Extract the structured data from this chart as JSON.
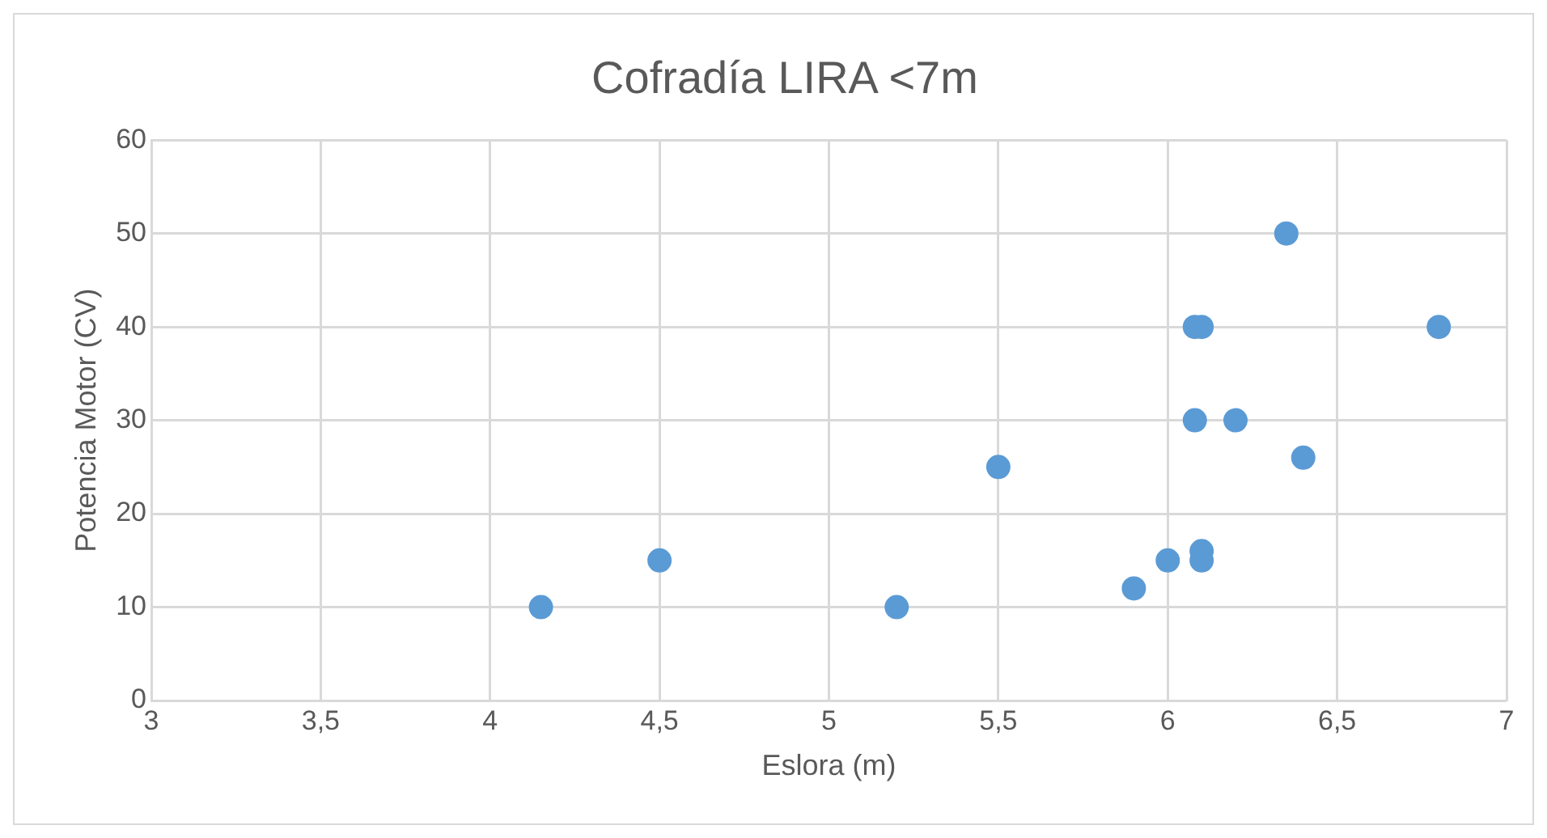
{
  "chart_data": {
    "type": "scatter",
    "title": "Cofradía LIRA <7m",
    "xlabel": "Eslora (m)",
    "ylabel": "Potencia Motor (CV)",
    "x": [
      4.15,
      4.5,
      5.2,
      5.5,
      5.9,
      6.0,
      6.1,
      6.1,
      6.08,
      6.08,
      6.1,
      6.2,
      6.35,
      6.4,
      6.8
    ],
    "series": [
      {
        "color": "#5b9bd5",
        "values": [
          10,
          15,
          10,
          25,
          12,
          15,
          16,
          15,
          30,
          40,
          40,
          30,
          50,
          26,
          40
        ]
      }
    ],
    "xlim": [
      3,
      7
    ],
    "xticks": [
      3,
      {
        "value": 3.5,
        "label": "3,5"
      },
      4,
      {
        "value": 4.5,
        "label": "4,5"
      },
      5,
      {
        "value": 5.5,
        "label": "5,5"
      },
      6,
      {
        "value": 6.5,
        "label": "6,5"
      },
      7
    ],
    "ylim": [
      0,
      60
    ],
    "yticks": [
      0,
      10,
      20,
      30,
      40,
      50,
      60
    ],
    "grid": true,
    "legend": false,
    "marker": "circle"
  }
}
